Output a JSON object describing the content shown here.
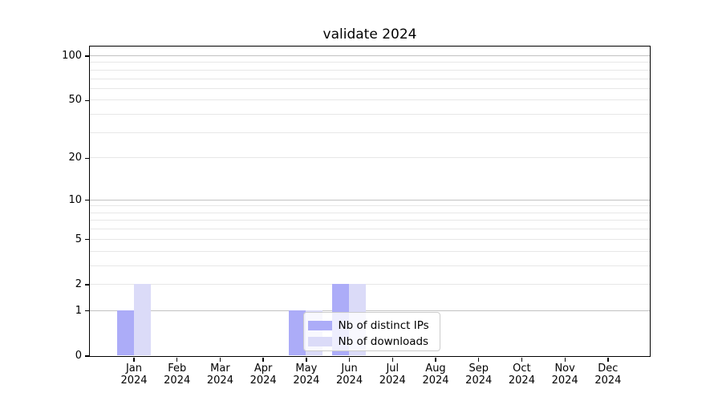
{
  "chart_data": {
    "type": "bar",
    "title": "validate 2024",
    "x": [
      "Jan 2024",
      "Feb 2024",
      "Mar 2024",
      "Apr 2024",
      "May 2024",
      "Jun 2024",
      "Jul 2024",
      "Aug 2024",
      "Sep 2024",
      "Oct 2024",
      "Nov 2024",
      "Dec 2024"
    ],
    "x_tick_months": [
      "Jan",
      "Feb",
      "Mar",
      "Apr",
      "May",
      "Jun",
      "Jul",
      "Aug",
      "Sep",
      "Oct",
      "Nov",
      "Dec"
    ],
    "x_tick_year": "2024",
    "series": [
      {
        "name": "Nb of distinct IPs",
        "color": "#acacf8",
        "values": [
          1,
          0,
          0,
          0,
          1,
          2,
          0,
          0,
          0,
          0,
          0,
          0
        ]
      },
      {
        "name": "Nb of downloads",
        "color": "#dbdbf8",
        "values": [
          2,
          0,
          0,
          0,
          1,
          2,
          0,
          0,
          0,
          0,
          0,
          0
        ]
      }
    ],
    "yscale": "log1p",
    "ylim": [
      0,
      115
    ],
    "ytick_values": [
      0,
      1,
      2,
      5,
      10,
      20,
      50,
      100
    ],
    "major_grid_values": [
      1,
      10,
      100
    ],
    "minor_grid_values": [
      2,
      3,
      4,
      5,
      6,
      7,
      8,
      9,
      20,
      30,
      40,
      50,
      60,
      70,
      80,
      90
    ],
    "grid": true,
    "legend_position": "lower center"
  },
  "colors": {
    "grid_major": "#c2c2c2",
    "grid_minor": "#e7e7e7",
    "spine": "#000000",
    "legend_border": "#cccccc",
    "legend_background": "rgba(255,255,255,0.8)"
  }
}
